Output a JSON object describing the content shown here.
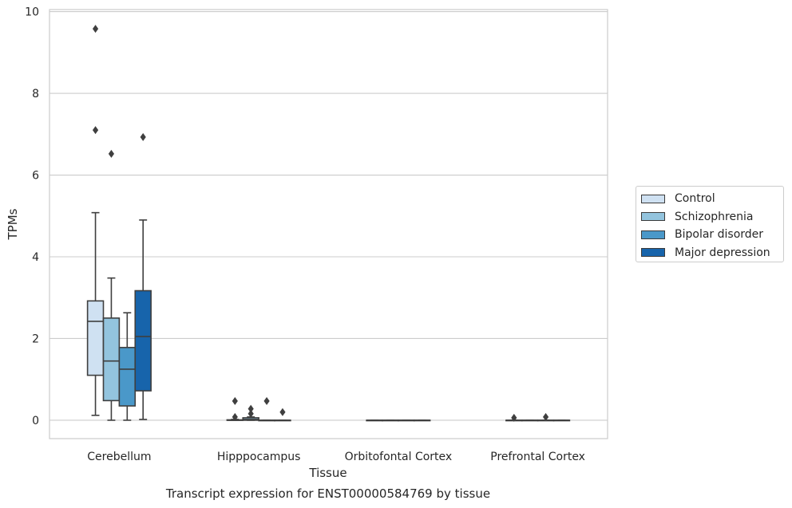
{
  "chart_data": {
    "type": "box",
    "title": "",
    "caption": "Transcript expression for ENST00000584769 by tissue",
    "xlabel": "Tissue",
    "ylabel": "TPMs",
    "ylim": [
      -0.45,
      10.05
    ],
    "yticks": [
      0,
      2,
      4,
      6,
      8,
      10
    ],
    "grid": true,
    "legend_position": "right",
    "categories": [
      "Cerebellum",
      "Hipppocampus",
      "Orbitofontal Cortex",
      "Prefrontal Cortex"
    ],
    "series": [
      {
        "name": "Control",
        "color": "#cfe1f2",
        "boxes": [
          {
            "min": 0.12,
            "q1": 1.1,
            "median": 2.42,
            "q3": 2.92,
            "max": 5.08,
            "outliers": [
              7.1,
              9.58
            ]
          },
          {
            "min": 0,
            "q1": 0,
            "median": 0,
            "q3": 0.01,
            "max": 0.02,
            "outliers": [
              0.08,
              0.47
            ]
          },
          {
            "min": 0,
            "q1": 0,
            "median": 0,
            "q3": 0,
            "max": 0,
            "outliers": []
          },
          {
            "min": 0,
            "q1": 0,
            "median": 0,
            "q3": 0,
            "max": 0,
            "outliers": [
              0.06
            ]
          }
        ]
      },
      {
        "name": "Schizophrenia",
        "color": "#93c4de",
        "boxes": [
          {
            "min": 0,
            "q1": 0.48,
            "median": 1.45,
            "q3": 2.5,
            "max": 3.48,
            "outliers": [
              6.52
            ]
          },
          {
            "min": 0,
            "q1": 0,
            "median": 0.02,
            "q3": 0.06,
            "max": 0.08,
            "outliers": [
              0.16,
              0.28
            ]
          },
          {
            "min": 0,
            "q1": 0,
            "median": 0,
            "q3": 0,
            "max": 0,
            "outliers": []
          },
          {
            "min": 0,
            "q1": 0,
            "median": 0,
            "q3": 0,
            "max": 0,
            "outliers": []
          }
        ]
      },
      {
        "name": "Bipolar disorder",
        "color": "#4a98c9",
        "boxes": [
          {
            "min": 0,
            "q1": 0.35,
            "median": 1.25,
            "q3": 1.78,
            "max": 2.63,
            "outliers": []
          },
          {
            "min": 0,
            "q1": 0,
            "median": 0,
            "q3": 0,
            "max": 0,
            "outliers": [
              0.47
            ]
          },
          {
            "min": 0,
            "q1": 0,
            "median": 0,
            "q3": 0,
            "max": 0,
            "outliers": []
          },
          {
            "min": 0,
            "q1": 0,
            "median": 0,
            "q3": 0,
            "max": 0,
            "outliers": [
              0.08
            ]
          }
        ]
      },
      {
        "name": "Major depression",
        "color": "#1764ab",
        "boxes": [
          {
            "min": 0.02,
            "q1": 0.72,
            "median": 2.05,
            "q3": 3.17,
            "max": 4.9,
            "outliers": [
              6.93
            ]
          },
          {
            "min": 0,
            "q1": 0,
            "median": 0,
            "q3": 0,
            "max": 0,
            "outliers": [
              0.2
            ]
          },
          {
            "min": 0,
            "q1": 0,
            "median": 0,
            "q3": 0,
            "max": 0,
            "outliers": []
          },
          {
            "min": 0,
            "q1": 0,
            "median": 0,
            "q3": 0,
            "max": 0,
            "outliers": []
          }
        ]
      }
    ]
  }
}
